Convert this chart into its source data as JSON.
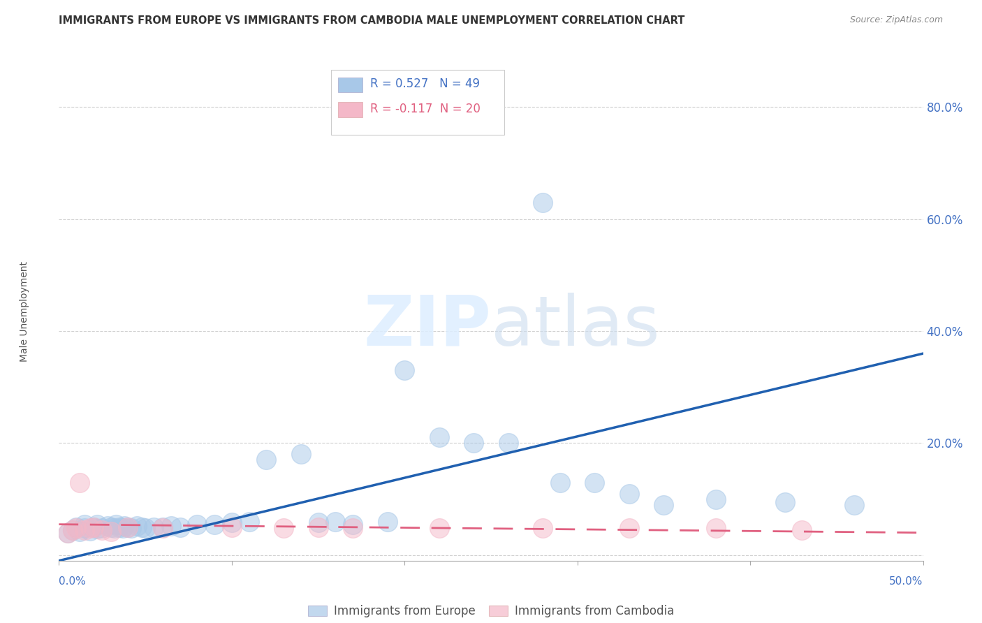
{
  "title": "IMMIGRANTS FROM EUROPE VS IMMIGRANTS FROM CAMBODIA MALE UNEMPLOYMENT CORRELATION CHART",
  "source": "Source: ZipAtlas.com",
  "ylabel": "Male Unemployment",
  "xlim": [
    0.0,
    0.5
  ],
  "ylim": [
    -0.01,
    0.88
  ],
  "yticks": [
    0.0,
    0.2,
    0.4,
    0.6,
    0.8
  ],
  "ytick_labels": [
    "",
    "20.0%",
    "40.0%",
    "60.0%",
    "80.0%"
  ],
  "xticks": [
    0.0,
    0.1,
    0.2,
    0.3,
    0.4,
    0.5
  ],
  "europe_R": 0.527,
  "europe_N": 49,
  "cambodia_R": -0.117,
  "cambodia_N": 20,
  "europe_color": "#a8c8e8",
  "cambodia_color": "#f4b8c8",
  "europe_line_color": "#2060b0",
  "cambodia_line_color": "#e06080",
  "legend_label_europe": "Immigrants from Europe",
  "legend_label_cambodia": "Immigrants from Cambodia",
  "europe_scatter_x": [
    0.005,
    0.008,
    0.01,
    0.012,
    0.015,
    0.015,
    0.018,
    0.02,
    0.022,
    0.022,
    0.025,
    0.028,
    0.03,
    0.032,
    0.033,
    0.035,
    0.037,
    0.038,
    0.04,
    0.042,
    0.045,
    0.048,
    0.05,
    0.055,
    0.06,
    0.065,
    0.07,
    0.08,
    0.09,
    0.1,
    0.11,
    0.12,
    0.14,
    0.15,
    0.16,
    0.17,
    0.19,
    0.2,
    0.22,
    0.24,
    0.26,
    0.28,
    0.29,
    0.31,
    0.33,
    0.35,
    0.38,
    0.42,
    0.46
  ],
  "europe_scatter_y": [
    0.04,
    0.045,
    0.05,
    0.042,
    0.048,
    0.055,
    0.043,
    0.05,
    0.047,
    0.055,
    0.048,
    0.052,
    0.05,
    0.048,
    0.055,
    0.05,
    0.048,
    0.052,
    0.05,
    0.048,
    0.052,
    0.05,
    0.048,
    0.05,
    0.05,
    0.052,
    0.05,
    0.055,
    0.055,
    0.058,
    0.06,
    0.17,
    0.18,
    0.058,
    0.06,
    0.055,
    0.06,
    0.33,
    0.21,
    0.2,
    0.2,
    0.63,
    0.13,
    0.13,
    0.11,
    0.09,
    0.1,
    0.095,
    0.09
  ],
  "cambodia_scatter_x": [
    0.005,
    0.008,
    0.01,
    0.012,
    0.015,
    0.018,
    0.02,
    0.025,
    0.03,
    0.04,
    0.06,
    0.1,
    0.13,
    0.15,
    0.17,
    0.22,
    0.28,
    0.33,
    0.38,
    0.43
  ],
  "cambodia_scatter_y": [
    0.04,
    0.045,
    0.048,
    0.13,
    0.045,
    0.048,
    0.05,
    0.045,
    0.042,
    0.05,
    0.048,
    0.05,
    0.048,
    0.05,
    0.048,
    0.048,
    0.048,
    0.048,
    0.048,
    0.045
  ],
  "europe_line_x": [
    0.0,
    0.5
  ],
  "europe_line_y": [
    -0.01,
    0.36
  ],
  "cambodia_line_x": [
    0.0,
    0.5
  ],
  "cambodia_line_y": [
    0.055,
    0.04
  ]
}
